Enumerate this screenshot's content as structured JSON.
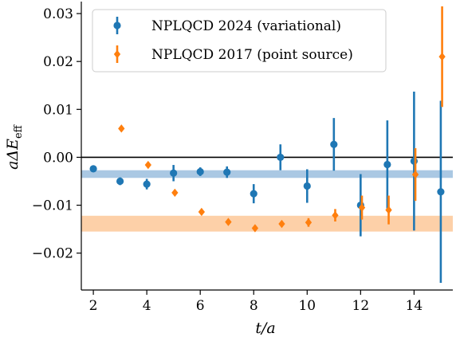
{
  "chart_data": {
    "type": "scatter",
    "xlabel": "t/a",
    "ylabel": "aΔE_eff",
    "xlim": [
      1.55,
      15.45
    ],
    "ylim": [
      -0.0277,
      0.0325
    ],
    "xticks": [
      2,
      4,
      6,
      8,
      10,
      12,
      14
    ],
    "xtick_labels": [
      "2",
      "4",
      "6",
      "8",
      "10",
      "12",
      "14"
    ],
    "yticks": [
      -0.02,
      -0.01,
      0.0,
      0.01,
      0.02,
      0.03
    ],
    "ytick_labels": [
      "−0.02",
      "−0.01",
      "0.00",
      "0.01",
      "0.02",
      "0.03"
    ],
    "grid": false,
    "legend_position": "top-left",
    "zero_line": 0.0,
    "bands": [
      {
        "name": "NPLQCD 2024 (variational)",
        "ymin": -0.0043,
        "ymax": -0.0027,
        "color": "#aac8e3"
      },
      {
        "name": "NPLQCD 2017 (point source)",
        "ymin": -0.0155,
        "ymax": -0.0122,
        "color": "#fdd0a8"
      }
    ],
    "series": [
      {
        "name": "NPLQCD 2024 (variational)",
        "color": "#1f77b4",
        "marker": "circle",
        "points": [
          {
            "x": 2,
            "y": -0.0024,
            "err": 0.0002
          },
          {
            "x": 3,
            "y": -0.005,
            "err": 0.0008
          },
          {
            "x": 4,
            "y": -0.0056,
            "err": 0.0011
          },
          {
            "x": 5,
            "y": -0.0033,
            "err": 0.0017
          },
          {
            "x": 6,
            "y": -0.003,
            "err": 0.0009
          },
          {
            "x": 7,
            "y": -0.0031,
            "err": 0.0012
          },
          {
            "x": 8,
            "y": -0.0076,
            "err": 0.002
          },
          {
            "x": 9,
            "y": 0.0,
            "err": 0.0027
          },
          {
            "x": 10,
            "y": -0.006,
            "err": 0.0035
          },
          {
            "x": 11,
            "y": 0.0027,
            "err": 0.0055
          },
          {
            "x": 12,
            "y": -0.01,
            "err": 0.0065
          },
          {
            "x": 13,
            "y": -0.0015,
            "err": 0.0092
          },
          {
            "x": 14,
            "y": -0.0008,
            "err": 0.0145
          },
          {
            "x": 15,
            "y": -0.0072,
            "err": 0.019
          }
        ]
      },
      {
        "name": "NPLQCD 2017 (point source)",
        "color": "#ff7f0e",
        "marker": "diamond",
        "points": [
          {
            "x": 3.05,
            "y": 0.006,
            "err": 0.0001
          },
          {
            "x": 4.05,
            "y": -0.0016,
            "err": 0.0002
          },
          {
            "x": 5.05,
            "y": -0.0074,
            "err": 0.0002
          },
          {
            "x": 6.05,
            "y": -0.0114,
            "err": 0.0003
          },
          {
            "x": 7.05,
            "y": -0.0135,
            "err": 0.0004
          },
          {
            "x": 8.05,
            "y": -0.0148,
            "err": 0.0005
          },
          {
            "x": 9.05,
            "y": -0.0139,
            "err": 0.0006
          },
          {
            "x": 10.05,
            "y": -0.0136,
            "err": 0.0009
          },
          {
            "x": 11.05,
            "y": -0.0121,
            "err": 0.0013
          },
          {
            "x": 12.05,
            "y": -0.0105,
            "err": 0.0025
          },
          {
            "x": 13.05,
            "y": -0.011,
            "err": 0.003
          },
          {
            "x": 14.05,
            "y": -0.0036,
            "err": 0.0055
          },
          {
            "x": 15.05,
            "y": 0.021,
            "err": 0.0105
          }
        ]
      }
    ],
    "legend": [
      {
        "label": "NPLQCD 2024 (variational)",
        "color": "#1f77b4",
        "marker": "circle"
      },
      {
        "label": "NPLQCD 2017 (point source)",
        "color": "#ff7f0e",
        "marker": "diamond"
      }
    ]
  }
}
